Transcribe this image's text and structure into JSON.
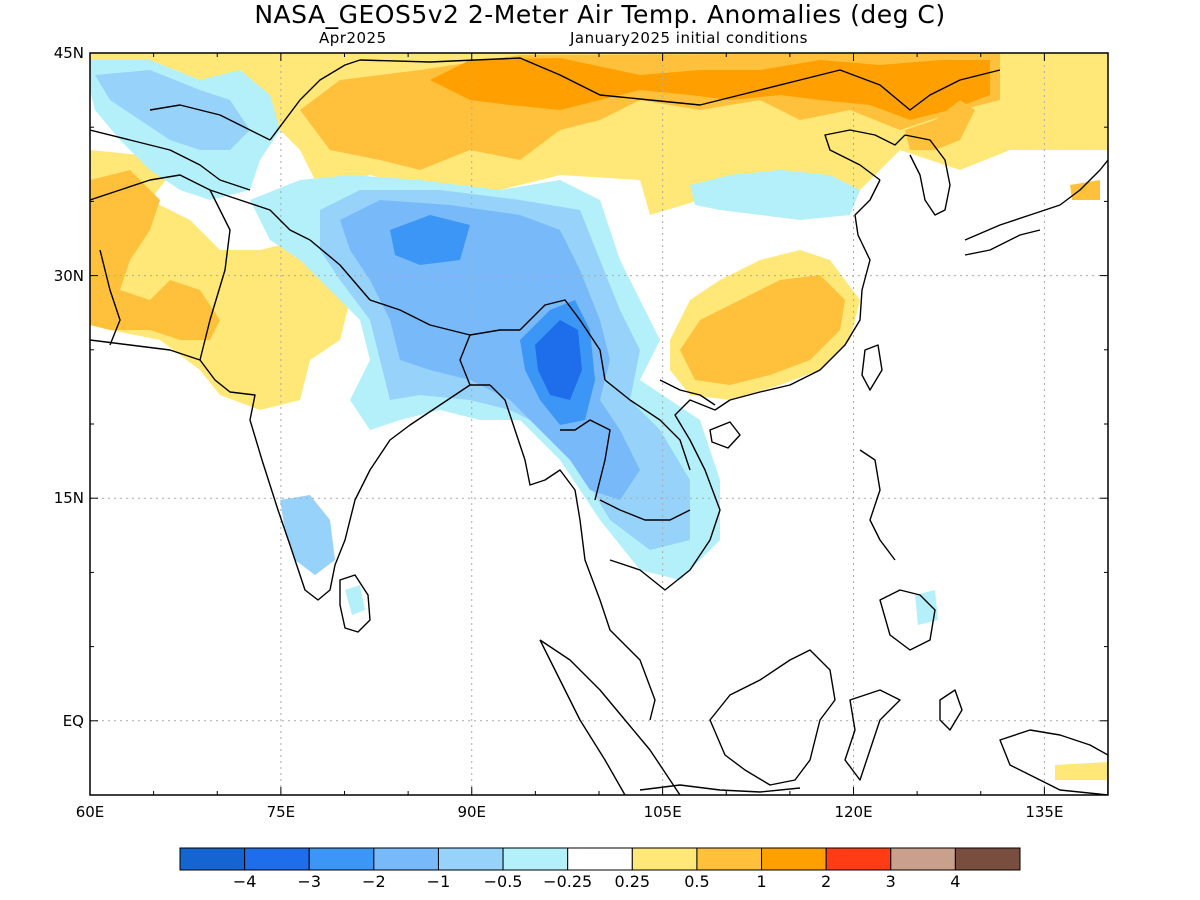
{
  "title": "NASA_GEOS5v2 2-Meter Air Temp. Anomalies (deg C)",
  "subtitle_left": "Apr2025",
  "subtitle_right": "January2025 initial conditions",
  "map": {
    "lon_range": [
      60,
      140
    ],
    "lat_range": [
      -5,
      45
    ],
    "lat_ticks": [
      {
        "value": 45,
        "label": "45N"
      },
      {
        "value": 30,
        "label": "30N"
      },
      {
        "value": 15,
        "label": "15N"
      },
      {
        "value": 0,
        "label": "EQ"
      }
    ],
    "lon_ticks": [
      {
        "value": 60,
        "label": "60E"
      },
      {
        "value": 75,
        "label": "75E"
      },
      {
        "value": 90,
        "label": "90E"
      },
      {
        "value": 105,
        "label": "105E"
      },
      {
        "value": 120,
        "label": "120E"
      },
      {
        "value": 135,
        "label": "135E"
      }
    ],
    "grid": true,
    "ocean_color": "#ffffff",
    "coastline_color": "#000000",
    "anomaly_regions": [
      {
        "level": 1,
        "center": [
          98,
          42
        ],
        "desc": "northern China / Mongolia warm"
      },
      {
        "level": 0.5,
        "center": [
          80,
          40
        ],
        "desc": "Tarim / Central Asia warm"
      },
      {
        "level": 0.5,
        "center": [
          66,
          32
        ],
        "desc": "Afghanistan / Pakistan warm"
      },
      {
        "level": 0.5,
        "center": [
          112,
          26
        ],
        "desc": "southern China warm"
      },
      {
        "level": -1,
        "center": [
          88,
          33
        ],
        "desc": "Tibetan Plateau cool"
      },
      {
        "level": -2,
        "center": [
          96,
          23
        ],
        "desc": "Myanmar cool"
      },
      {
        "level": -0.5,
        "center": [
          103,
          16
        ],
        "desc": "Indochina cool"
      },
      {
        "level": -0.5,
        "center": [
          76,
          13
        ],
        "desc": "south India cool"
      },
      {
        "level": -0.5,
        "center": [
          112,
          36
        ],
        "desc": "north China cool patch"
      }
    ]
  },
  "colorbar": {
    "colors": [
      "#1464d2",
      "#1e6eeb",
      "#3c96f5",
      "#78b9fa",
      "#96d2fa",
      "#b4f0fa",
      "#ffffff",
      "#ffe878",
      "#ffc03c",
      "#ffa000",
      "#ff3c14",
      "#c8a08c",
      "#7a4e3e"
    ],
    "tick_labels": [
      "−4",
      "−3",
      "−2",
      "−1",
      "−0.5",
      "−0.25",
      "0.25",
      "0.5",
      "1",
      "2",
      "3",
      "4"
    ]
  }
}
